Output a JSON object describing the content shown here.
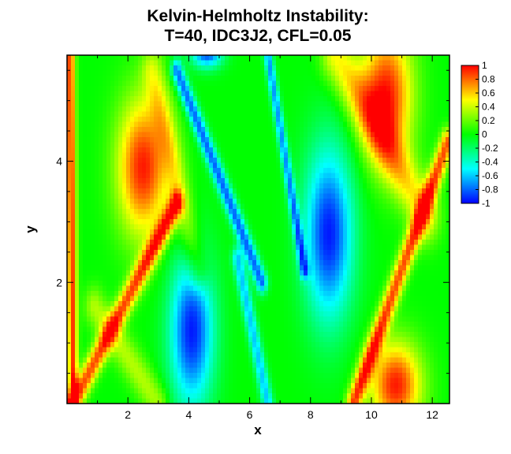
{
  "chart_data": {
    "type": "heatmap",
    "title": "Kelvin-Helmholtz Instability:",
    "subtitle": "T=40, IDC3J2, CFL=0.05",
    "xlabel": "x",
    "ylabel": "y",
    "xlim": [
      0,
      12.566
    ],
    "ylim": [
      0,
      5.75
    ],
    "x_ticks": [
      "2",
      "4",
      "6",
      "8",
      "10",
      "12"
    ],
    "x_tick_values": [
      2,
      4,
      6,
      8,
      10,
      12
    ],
    "x_minor_ticks": [
      1,
      3,
      5,
      7,
      9,
      11
    ],
    "y_ticks": [
      "2",
      "4"
    ],
    "y_tick_values": [
      2,
      4
    ],
    "y_minor_ticks": [
      0.5,
      1,
      1.5,
      2.5,
      3,
      3.5,
      4.5,
      5,
      5.5
    ],
    "colorbar": {
      "min": -1,
      "max": 1,
      "ticks": [
        "1",
        "0.8",
        "0.6",
        "0.4",
        "0.2",
        "0",
        "-0.2",
        "-0.4",
        "-0.6",
        "-0.8",
        "-1"
      ],
      "tick_values": [
        1,
        0.8,
        0.6,
        0.4,
        0.2,
        0,
        -0.2,
        -0.4,
        -0.6,
        -0.8,
        -1
      ],
      "colormap": [
        "#0000ff",
        "#00ffff",
        "#00ff00",
        "#ffff00",
        "#ff0000"
      ]
    },
    "features": [
      {
        "kind": "blob",
        "x": 2.5,
        "y": 3.9,
        "sx": 1.0,
        "sy": 1.35,
        "value": 0.95
      },
      {
        "kind": "blob",
        "x": 10.5,
        "y": 5.1,
        "sx": 1.0,
        "sy": 1.3,
        "value": 0.95
      },
      {
        "kind": "blob",
        "x": 10.8,
        "y": 0.3,
        "sx": 1.0,
        "sy": 0.85,
        "value": 0.95
      },
      {
        "kind": "blob",
        "x": 8.6,
        "y": 2.8,
        "sx": 0.95,
        "sy": 1.7,
        "value": -0.95
      },
      {
        "kind": "blob",
        "x": 4.1,
        "y": 1.2,
        "sx": 0.85,
        "sy": 1.5,
        "value": -0.95
      },
      {
        "kind": "blob",
        "x": 4.6,
        "y": 5.8,
        "sx": 0.6,
        "sy": 0.3,
        "value": -0.9
      },
      {
        "kind": "band",
        "x0": 0.2,
        "y0": 0.0,
        "x1": 3.6,
        "y1": 3.3,
        "width": 0.22,
        "value": 0.85
      },
      {
        "kind": "band",
        "x0": 9.4,
        "y0": 0.0,
        "x1": 12.5,
        "y1": 4.3,
        "width": 0.22,
        "value": 0.85
      },
      {
        "kind": "band",
        "x0": 0.1,
        "y0": 5.75,
        "x1": 0.2,
        "y1": 0.0,
        "width": 0.16,
        "value": 0.9
      },
      {
        "kind": "band",
        "x0": 3.6,
        "y0": 5.5,
        "x1": 6.4,
        "y1": 2.0,
        "width": 0.18,
        "value": -0.8
      },
      {
        "kind": "band",
        "x0": 6.6,
        "y0": 5.75,
        "x1": 7.8,
        "y1": 2.2,
        "width": 0.14,
        "value": -0.7
      },
      {
        "kind": "band",
        "x0": 5.6,
        "y0": 2.4,
        "x1": 6.6,
        "y1": 0.0,
        "width": 0.18,
        "value": -0.6
      },
      {
        "kind": "band",
        "x0": 8.8,
        "y0": 5.75,
        "x1": 11.8,
        "y1": 3.1,
        "width": 0.45,
        "value": 0.5
      },
      {
        "kind": "band",
        "x0": 0.9,
        "y0": 1.6,
        "x1": 3.0,
        "y1": 0.0,
        "width": 0.32,
        "value": 0.35
      },
      {
        "kind": "band",
        "x0": 2.8,
        "y0": 5.5,
        "x1": 4.3,
        "y1": 2.2,
        "width": 0.35,
        "value": 0.35
      }
    ]
  }
}
